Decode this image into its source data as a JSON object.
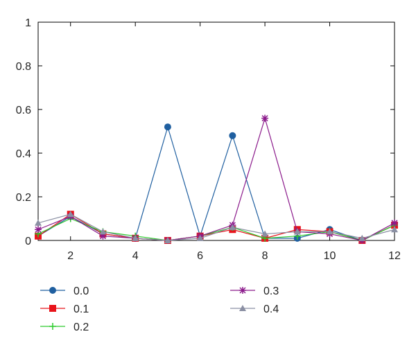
{
  "chart_data": {
    "type": "line",
    "title": "",
    "xlabel": "",
    "ylabel": "",
    "xlim": [
      1,
      12
    ],
    "ylim": [
      0,
      1
    ],
    "x_ticks": [
      2,
      4,
      6,
      8,
      10,
      12
    ],
    "x_tick_labels": [
      "2",
      "4",
      "6",
      "8",
      "10",
      "12"
    ],
    "y_ticks": [
      0,
      0.2,
      0.4,
      0.6,
      0.8,
      1
    ],
    "y_tick_labels": [
      "0",
      "0.2",
      "0.4",
      "0.6",
      "0.8",
      "1"
    ],
    "grid": false,
    "legend_position": "bottom",
    "x": [
      1,
      2,
      3,
      4,
      5,
      6,
      7,
      8,
      9,
      10,
      11,
      12
    ],
    "series": [
      {
        "name": "0.0",
        "color": "#1f5fa0",
        "marker": "circle",
        "values": [
          0.02,
          0.11,
          0.03,
          0.01,
          0.52,
          0.02,
          0.48,
          0.01,
          0.01,
          0.05,
          0.0,
          0.07
        ]
      },
      {
        "name": "0.1",
        "color": "#e8141b",
        "marker": "square",
        "values": [
          0.02,
          0.12,
          0.03,
          0.01,
          0.0,
          0.02,
          0.05,
          0.01,
          0.05,
          0.04,
          0.0,
          0.07
        ]
      },
      {
        "name": "0.2",
        "color": "#2ccb2c",
        "marker": "plus",
        "values": [
          0.03,
          0.1,
          0.04,
          0.02,
          0.0,
          0.02,
          0.06,
          0.01,
          0.02,
          0.04,
          0.0,
          0.07
        ]
      },
      {
        "name": "0.3",
        "color": "#8b1a8b",
        "marker": "star",
        "values": [
          0.05,
          0.11,
          0.02,
          0.01,
          0.0,
          0.02,
          0.07,
          0.56,
          0.04,
          0.03,
          0.0,
          0.08
        ]
      },
      {
        "name": "0.4",
        "color": "#8a8fa3",
        "marker": "triangle",
        "values": [
          0.08,
          0.12,
          0.04,
          0.01,
          0.0,
          0.01,
          0.06,
          0.03,
          0.04,
          0.04,
          0.01,
          0.05
        ]
      }
    ]
  }
}
